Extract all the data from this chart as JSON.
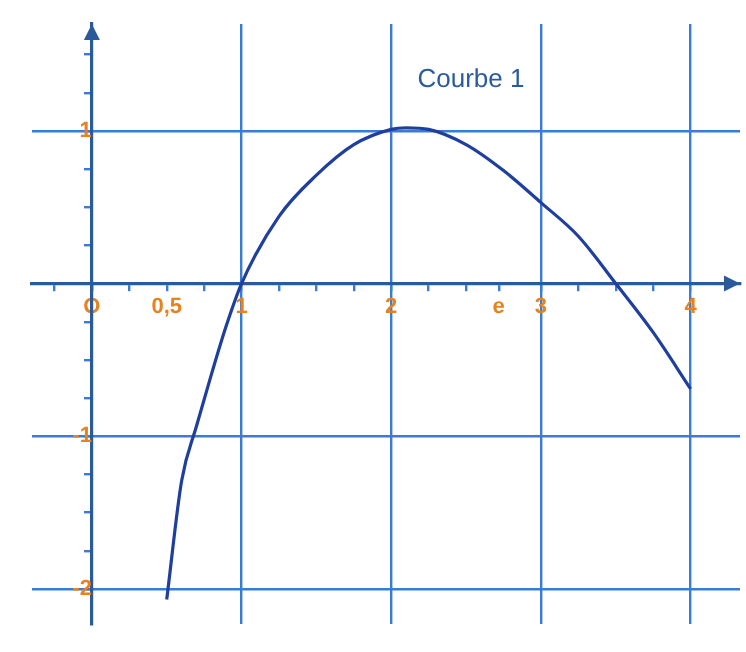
{
  "chart_data": {
    "type": "line",
    "xlim": [
      -0.4,
      4.33
    ],
    "ylim": [
      -2.23,
      1.7
    ],
    "xticks": [
      {
        "value": -0.25,
        "label": null
      },
      {
        "value": 0,
        "label": "O"
      },
      {
        "value": 0.25,
        "label": null
      },
      {
        "value": 0.5,
        "label": "0,5"
      },
      {
        "value": 0.75,
        "label": null
      },
      1,
      {
        "value": 1.25,
        "label": null
      },
      {
        "value": 1.5,
        "label": null
      },
      {
        "value": 1.75,
        "label": null
      },
      2,
      {
        "value": 2.25,
        "label": null
      },
      {
        "value": 2.5,
        "label": null
      },
      {
        "value": 2.718,
        "label": "e"
      },
      3,
      {
        "value": 3.25,
        "label": null
      },
      {
        "value": 3.5,
        "label": null
      },
      {
        "value": 3.75,
        "label": null
      },
      4
    ],
    "yticks": [
      {
        "value": -2,
        "label": "-2"
      },
      {
        "value": -1.75,
        "label": null
      },
      {
        "value": -1.5,
        "label": null
      },
      {
        "value": -1.25,
        "label": null
      },
      {
        "value": -1,
        "label": "-1"
      },
      {
        "value": -0.75,
        "label": null
      },
      {
        "value": -0.5,
        "label": null
      },
      {
        "value": -0.25,
        "label": null
      },
      {
        "value": 0.25,
        "label": null
      },
      {
        "value": 0.5,
        "label": null
      },
      {
        "value": 0.75,
        "label": null
      },
      1,
      {
        "value": 1.25,
        "label": null
      },
      {
        "value": 1.5,
        "label": null
      }
    ],
    "grid": true,
    "legend": false,
    "marker": "none",
    "line_style": "solid",
    "series": [
      {
        "name": "Courbe 1",
        "color": "#1f3f9f",
        "x": [
          0.5,
          0.6,
          0.7,
          0.8,
          0.9,
          1,
          1.25,
          1.5,
          1.75,
          2,
          2.1,
          2.25,
          2.5,
          2.75,
          3,
          3.25,
          3.5,
          3.75,
          4
        ],
        "values": [
          -2.07,
          -1.29,
          -0.93,
          -0.59,
          -0.27,
          0,
          0.44,
          0.71,
          0.91,
          1.01,
          1.02,
          1.01,
          0.91,
          0.74,
          0.53,
          0.31,
          0,
          -0.32,
          -0.69
        ]
      }
    ]
  }
}
